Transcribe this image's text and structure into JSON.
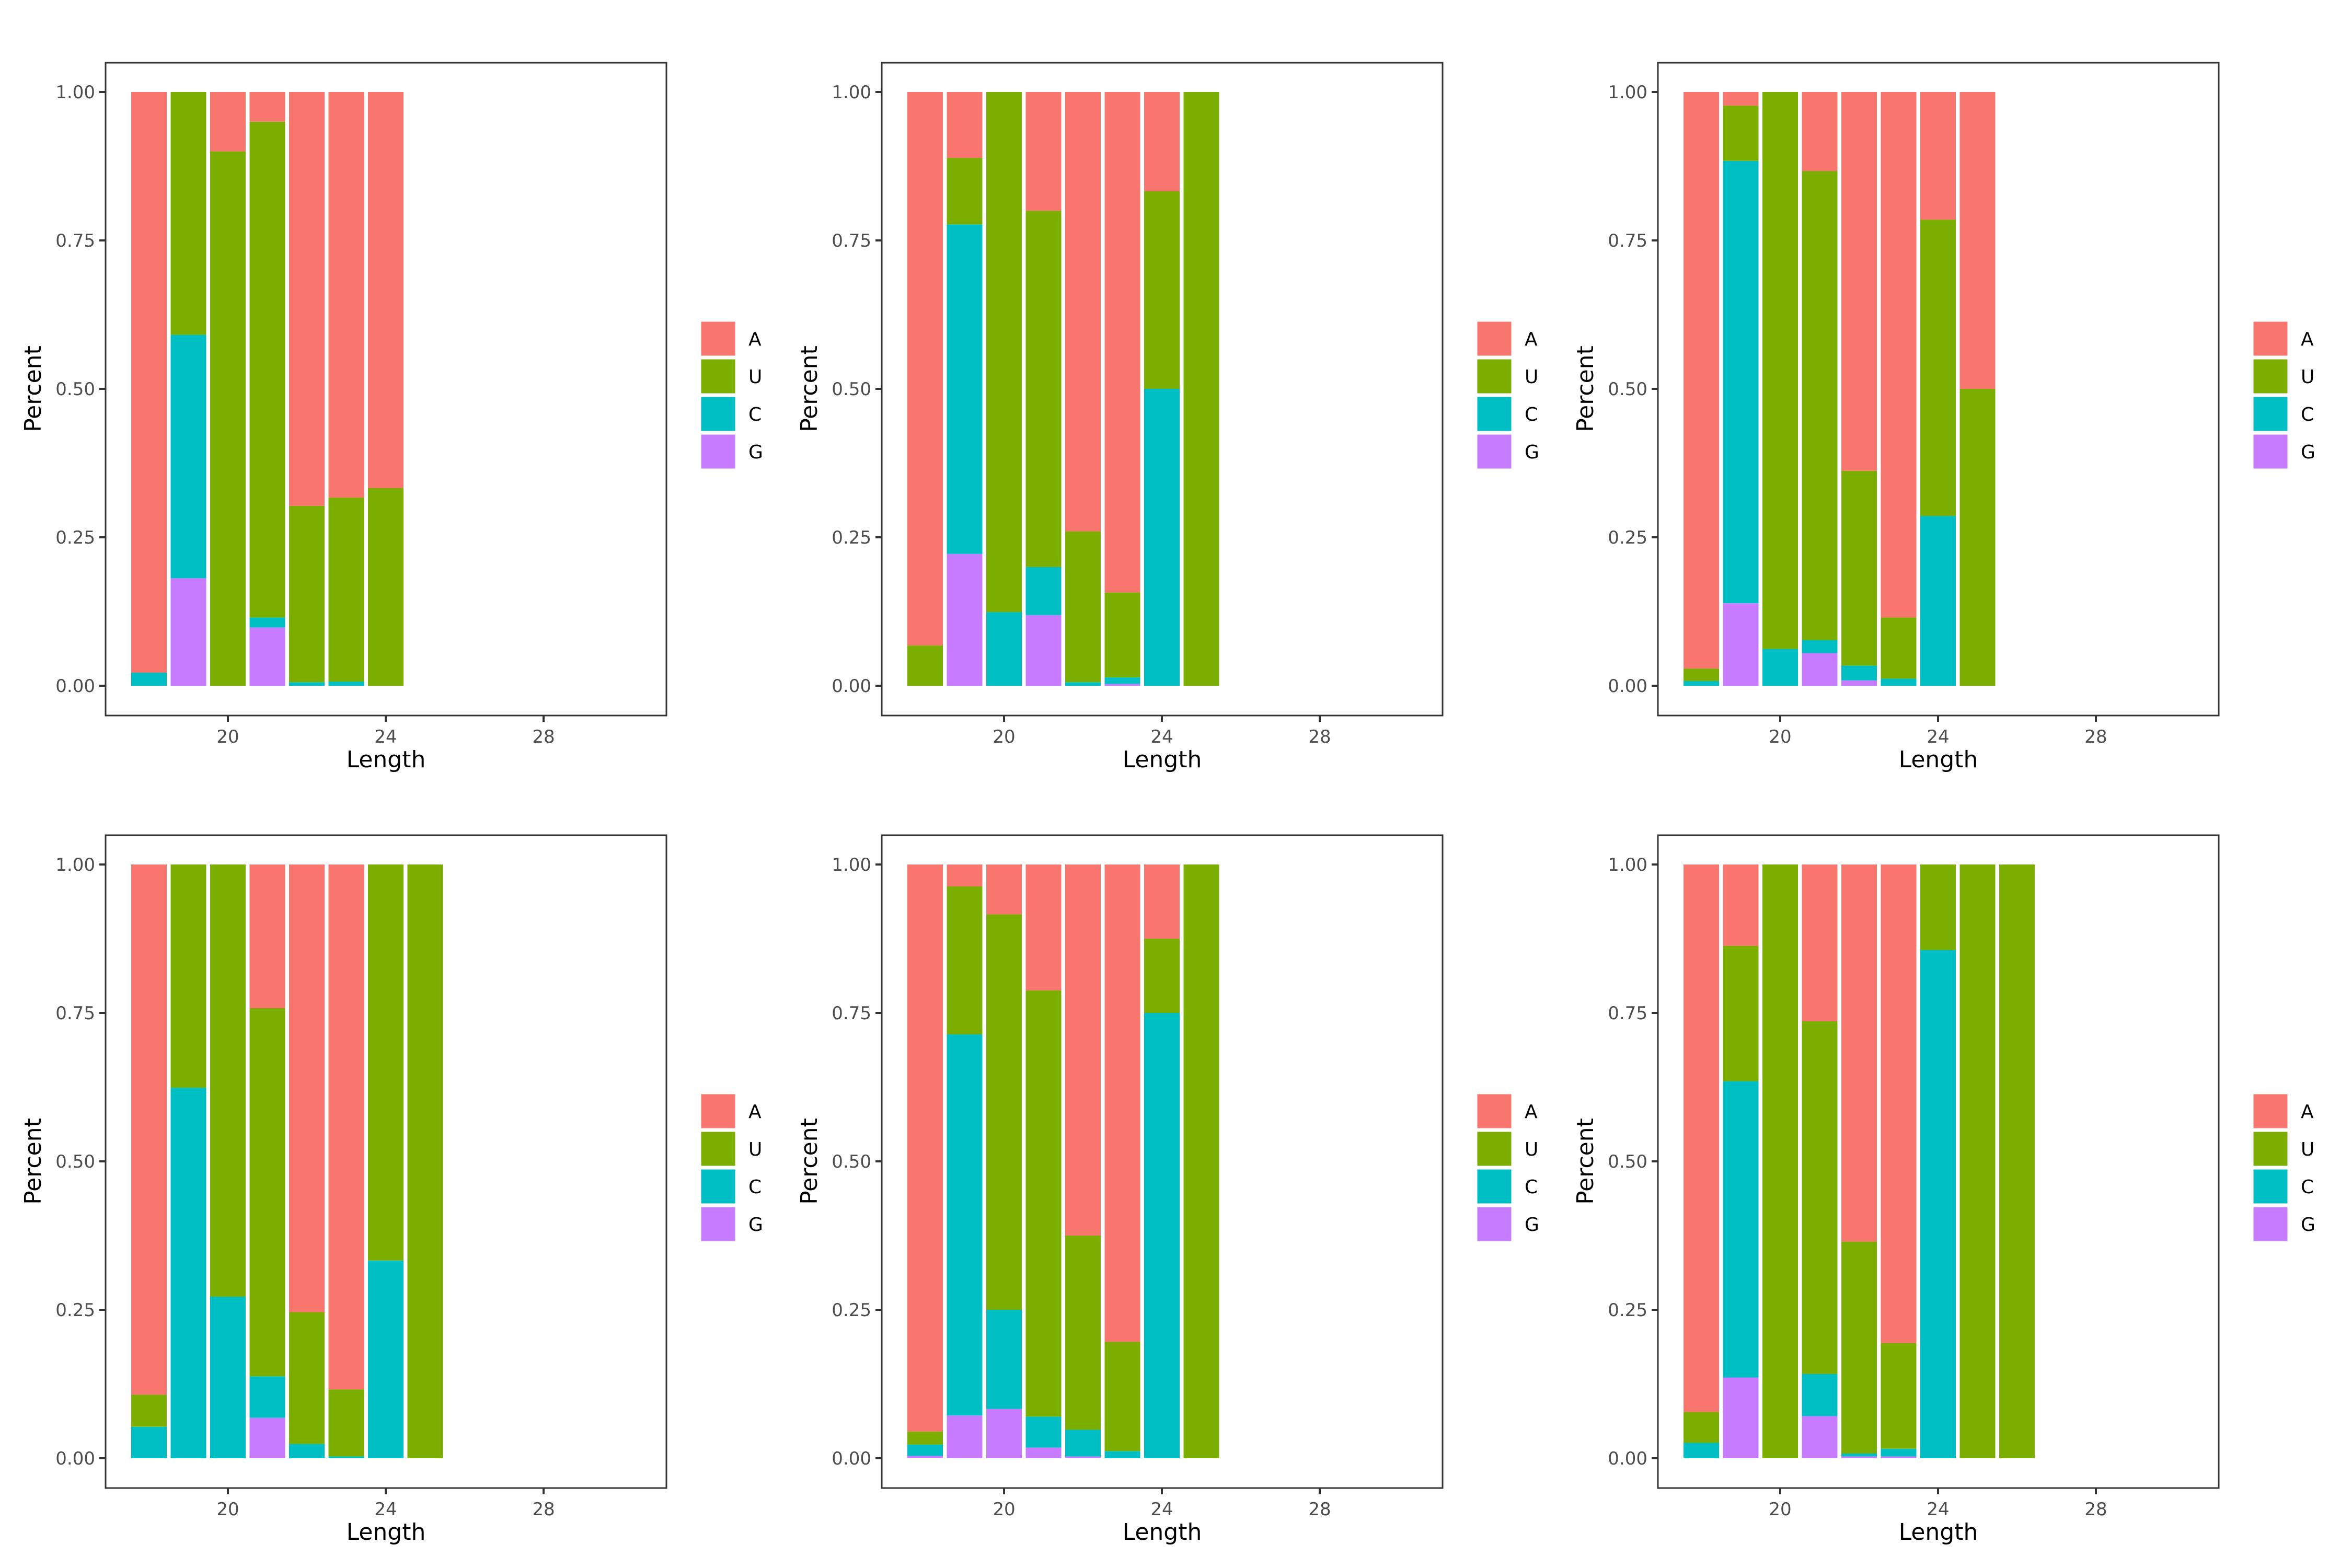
{
  "chart_data": {
    "type": "bar",
    "stacked": true,
    "layout": "3 columns x 2 rows of panels",
    "legend_position": "right",
    "legend_entries": [
      "A",
      "U",
      "C",
      "G"
    ],
    "colors": {
      "A": "#F8766D",
      "U": "#7CAE00",
      "C": "#00BFC4",
      "G": "#C77CFF"
    },
    "stack_order_bottom_to_top": [
      "G",
      "C",
      "U",
      "A"
    ],
    "x_ticks": [
      "20",
      "24",
      "28"
    ],
    "y_ticks": [
      "0.00",
      "0.25",
      "0.50",
      "0.75",
      "1.00"
    ],
    "xlim": [
      16.9,
      31.1
    ],
    "ylim": [
      -0.05,
      1.05
    ],
    "grid": false,
    "panels": [
      {
        "xlabel": "Length",
        "ylabel": "Percent",
        "bars": [
          {
            "x": 18,
            "A": 0.978,
            "U": 0.0,
            "C": 0.022,
            "G": 0.0
          },
          {
            "x": 19,
            "A": 0.0,
            "U": 0.409,
            "C": 0.41,
            "G": 0.181
          },
          {
            "x": 20,
            "A": 0.1,
            "U": 0.9,
            "C": 0.0,
            "G": 0.0
          },
          {
            "x": 21,
            "A": 0.05,
            "U": 0.835,
            "C": 0.017,
            "G": 0.098
          },
          {
            "x": 22,
            "A": 0.697,
            "U": 0.297,
            "C": 0.006,
            "G": 0.0
          },
          {
            "x": 23,
            "A": 0.683,
            "U": 0.31,
            "C": 0.007,
            "G": 0.0
          },
          {
            "x": 24,
            "A": 0.667,
            "U": 0.333,
            "C": 0.0,
            "G": 0.0
          }
        ]
      },
      {
        "xlabel": "Length",
        "ylabel": "Percent",
        "bars": [
          {
            "x": 18,
            "A": 0.932,
            "U": 0.068,
            "C": 0.0,
            "G": 0.0
          },
          {
            "x": 19,
            "A": 0.111,
            "U": 0.112,
            "C": 0.555,
            "G": 0.222
          },
          {
            "x": 20,
            "A": 0.0,
            "U": 0.876,
            "C": 0.124,
            "G": 0.0
          },
          {
            "x": 21,
            "A": 0.2,
            "U": 0.6,
            "C": 0.081,
            "G": 0.119
          },
          {
            "x": 22,
            "A": 0.74,
            "U": 0.254,
            "C": 0.006,
            "G": 0.0
          },
          {
            "x": 23,
            "A": 0.843,
            "U": 0.143,
            "C": 0.011,
            "G": 0.003
          },
          {
            "x": 24,
            "A": 0.167,
            "U": 0.333,
            "C": 0.5,
            "G": 0.0
          },
          {
            "x": 25,
            "A": 0.0,
            "U": 1.0,
            "C": 0.0,
            "G": 0.0
          }
        ]
      },
      {
        "xlabel": "Length",
        "ylabel": "Percent",
        "bars": [
          {
            "x": 18,
            "A": 0.971,
            "U": 0.021,
            "C": 0.008,
            "G": 0.0
          },
          {
            "x": 19,
            "A": 0.023,
            "U": 0.093,
            "C": 0.745,
            "G": 0.139
          },
          {
            "x": 20,
            "A": 0.0,
            "U": 0.938,
            "C": 0.062,
            "G": 0.0
          },
          {
            "x": 21,
            "A": 0.133,
            "U": 0.79,
            "C": 0.022,
            "G": 0.055
          },
          {
            "x": 22,
            "A": 0.638,
            "U": 0.328,
            "C": 0.025,
            "G": 0.009
          },
          {
            "x": 23,
            "A": 0.885,
            "U": 0.103,
            "C": 0.012,
            "G": 0.0
          },
          {
            "x": 24,
            "A": 0.215,
            "U": 0.499,
            "C": 0.286,
            "G": 0.0
          },
          {
            "x": 25,
            "A": 0.5,
            "U": 0.5,
            "C": 0.0,
            "G": 0.0
          }
        ]
      },
      {
        "xlabel": "Length",
        "ylabel": "Percent",
        "bars": [
          {
            "x": 18,
            "A": 0.893,
            "U": 0.054,
            "C": 0.053,
            "G": 0.0
          },
          {
            "x": 19,
            "A": 0.0,
            "U": 0.376,
            "C": 0.624,
            "G": 0.0
          },
          {
            "x": 20,
            "A": 0.0,
            "U": 0.728,
            "C": 0.272,
            "G": 0.0
          },
          {
            "x": 21,
            "A": 0.242,
            "U": 0.62,
            "C": 0.07,
            "G": 0.068
          },
          {
            "x": 22,
            "A": 0.754,
            "U": 0.222,
            "C": 0.024,
            "G": 0.0
          },
          {
            "x": 23,
            "A": 0.884,
            "U": 0.113,
            "C": 0.003,
            "G": 0.0
          },
          {
            "x": 24,
            "A": 0.0,
            "U": 0.667,
            "C": 0.333,
            "G": 0.0
          },
          {
            "x": 25,
            "A": 0.0,
            "U": 1.0,
            "C": 0.0,
            "G": 0.0
          }
        ]
      },
      {
        "xlabel": "Length",
        "ylabel": "Percent",
        "bars": [
          {
            "x": 18,
            "A": 0.955,
            "U": 0.022,
            "C": 0.019,
            "G": 0.004
          },
          {
            "x": 19,
            "A": 0.037,
            "U": 0.249,
            "C": 0.642,
            "G": 0.072
          },
          {
            "x": 20,
            "A": 0.084,
            "U": 0.666,
            "C": 0.167,
            "G": 0.083
          },
          {
            "x": 21,
            "A": 0.212,
            "U": 0.718,
            "C": 0.052,
            "G": 0.018
          },
          {
            "x": 22,
            "A": 0.625,
            "U": 0.327,
            "C": 0.045,
            "G": 0.003
          },
          {
            "x": 23,
            "A": 0.804,
            "U": 0.184,
            "C": 0.012,
            "G": 0.0
          },
          {
            "x": 24,
            "A": 0.125,
            "U": 0.125,
            "C": 0.75,
            "G": 0.0
          },
          {
            "x": 25,
            "A": 0.0,
            "U": 1.0,
            "C": 0.0,
            "G": 0.0
          }
        ]
      },
      {
        "xlabel": "Length",
        "ylabel": "Percent",
        "bars": [
          {
            "x": 18,
            "A": 0.922,
            "U": 0.052,
            "C": 0.026,
            "G": 0.0
          },
          {
            "x": 19,
            "A": 0.137,
            "U": 0.228,
            "C": 0.499,
            "G": 0.136
          },
          {
            "x": 20,
            "A": 0.0,
            "U": 1.0,
            "C": 0.0,
            "G": 0.0
          },
          {
            "x": 21,
            "A": 0.264,
            "U": 0.594,
            "C": 0.071,
            "G": 0.071
          },
          {
            "x": 22,
            "A": 0.635,
            "U": 0.357,
            "C": 0.005,
            "G": 0.003
          },
          {
            "x": 23,
            "A": 0.806,
            "U": 0.178,
            "C": 0.013,
            "G": 0.003
          },
          {
            "x": 24,
            "A": 0.0,
            "U": 0.144,
            "C": 0.856,
            "G": 0.0
          },
          {
            "x": 25,
            "A": 0.0,
            "U": 1.0,
            "C": 0.0,
            "G": 0.0
          },
          {
            "x": 26,
            "A": 0.0,
            "U": 1.0,
            "C": 0.0,
            "G": 0.0
          }
        ]
      }
    ]
  }
}
